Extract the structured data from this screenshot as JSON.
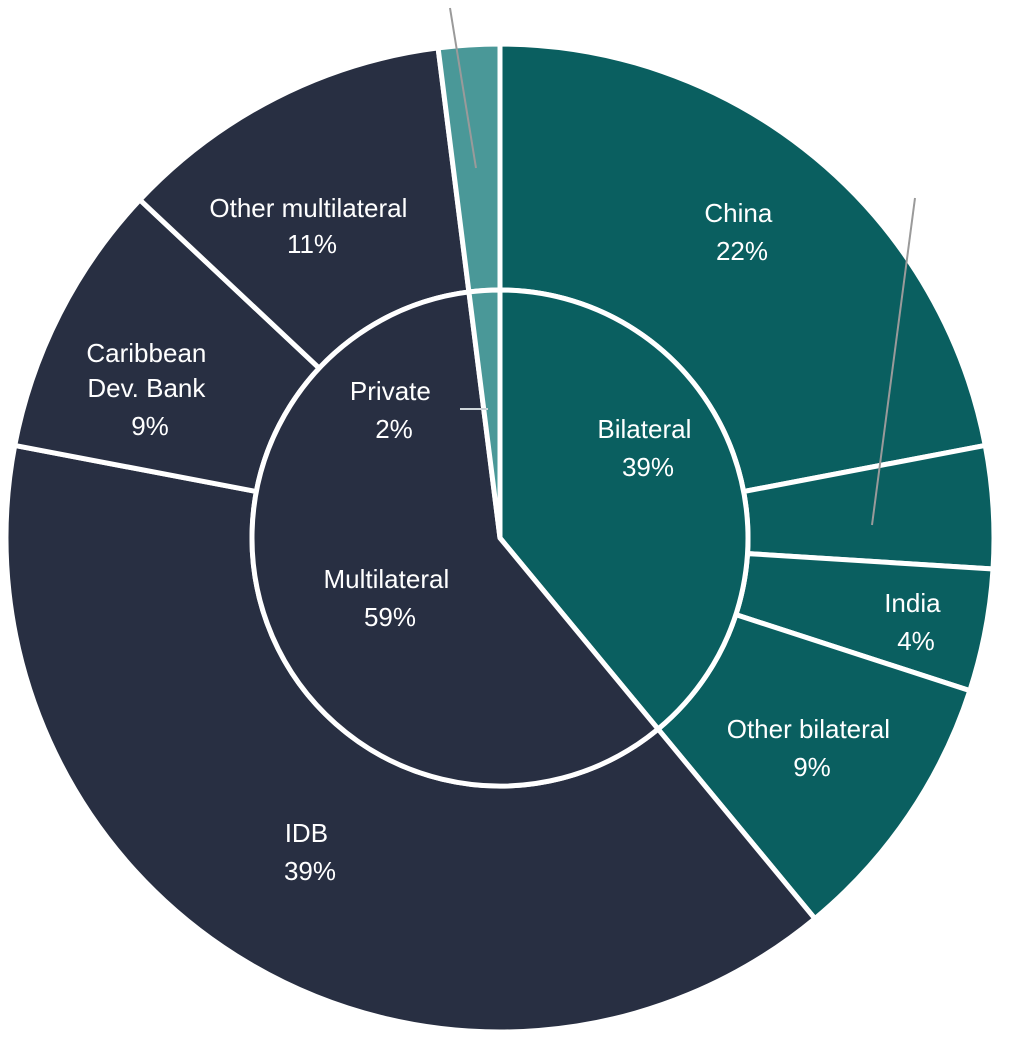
{
  "chart_data": {
    "type": "pie",
    "variant": "sunburst",
    "title": "",
    "inner_ring": [
      {
        "name": "Bilateral",
        "label": "Bilateral",
        "value_label": "39%",
        "value": 39,
        "color": "#0a5f60"
      },
      {
        "name": "Multilateral",
        "label": "Multilateral",
        "value_label": "59%",
        "value": 59,
        "color": "#282f42"
      },
      {
        "name": "Private",
        "label": "Private",
        "value_label": "2%",
        "value": 2,
        "color": "#4a9898"
      }
    ],
    "outer_ring": [
      {
        "name": "China",
        "label": "China",
        "value_label": "22%",
        "value": 22,
        "parent": "Bilateral",
        "color": "#0a5f60"
      },
      {
        "name": "Other bilateral (unlabeled)",
        "label": "",
        "value_label": "",
        "value": 4,
        "parent": "Bilateral",
        "color": "#0a5f60"
      },
      {
        "name": "India",
        "label": "India",
        "value_label": "4%",
        "value": 4,
        "parent": "Bilateral",
        "color": "#0a5f60"
      },
      {
        "name": "Other bilateral",
        "label": "Other bilateral",
        "value_label": "9%",
        "value": 9,
        "parent": "Bilateral",
        "color": "#0a5f60"
      },
      {
        "name": "IDB",
        "label": "IDB",
        "value_label": "39%",
        "value": 39,
        "parent": "Multilateral",
        "color": "#282f42"
      },
      {
        "name": "Caribbean Dev. Bank",
        "label": "Caribbean Dev. Bank",
        "label_lines": [
          "Caribbean",
          "Dev. Bank"
        ],
        "value_label": "9%",
        "value": 9,
        "parent": "Multilateral",
        "color": "#282f42"
      },
      {
        "name": "Other multilateral",
        "label": "Other multilateral",
        "value_label": "11%",
        "value": 11,
        "parent": "Multilateral",
        "color": "#282f42"
      },
      {
        "name": "Private",
        "label": "",
        "value_label": "",
        "value": 2,
        "parent": "Private",
        "color": "#4a9898"
      }
    ],
    "separator_color": "#ffffff"
  }
}
